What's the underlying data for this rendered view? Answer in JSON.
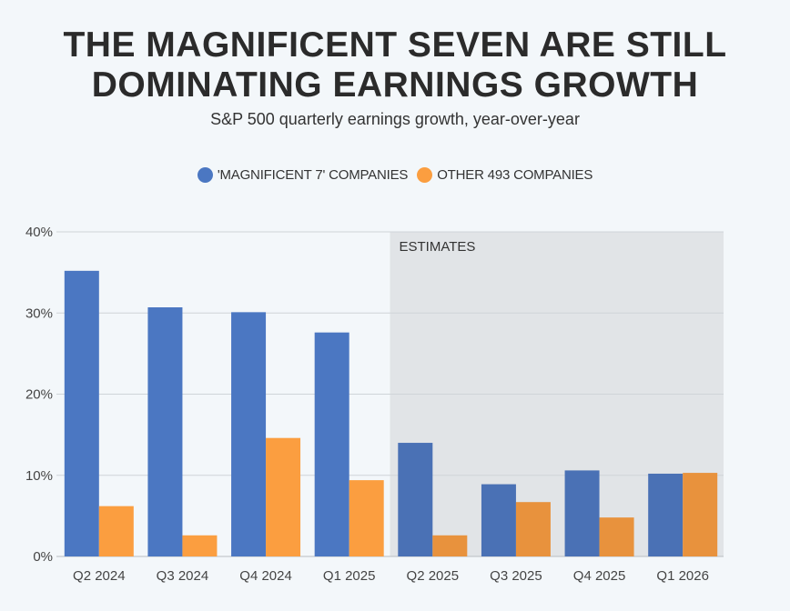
{
  "chart_data": {
    "type": "bar",
    "title": "THE MAGNIFICENT SEVEN ARE STILL DOMINATING EARNINGS GROWTH",
    "title_lines": [
      "THE MAGNIFICENT SEVEN ARE STILL",
      "DOMINATING EARNINGS GROWTH"
    ],
    "subtitle": "S&P 500 quarterly earnings growth, year-over-year",
    "categories": [
      "Q2 2024",
      "Q3 2024",
      "Q4 2024",
      "Q1 2025",
      "Q2 2025",
      "Q3 2025",
      "Q4 2025",
      "Q1 2026"
    ],
    "series": [
      {
        "name": "'MAGNIFICENT 7' COMPANIES",
        "color": "#4b77c2",
        "estimate_color": "#4a71b5",
        "values": [
          35.2,
          30.7,
          30.1,
          27.6,
          14.0,
          8.9,
          10.6,
          10.2
        ]
      },
      {
        "name": "OTHER 493 COMPANIES",
        "color": "#fb9e40",
        "estimate_color": "#e8923d",
        "values": [
          6.2,
          2.6,
          14.6,
          9.4,
          2.6,
          6.7,
          4.8,
          10.3
        ]
      }
    ],
    "y_ticks": [
      "0%",
      "10%",
      "20%",
      "30%",
      "40%"
    ],
    "ylim": [
      0,
      40
    ],
    "estimates_label": "ESTIMATES",
    "estimates_start_index": 4,
    "grid": true,
    "legend_position": "top-center"
  }
}
